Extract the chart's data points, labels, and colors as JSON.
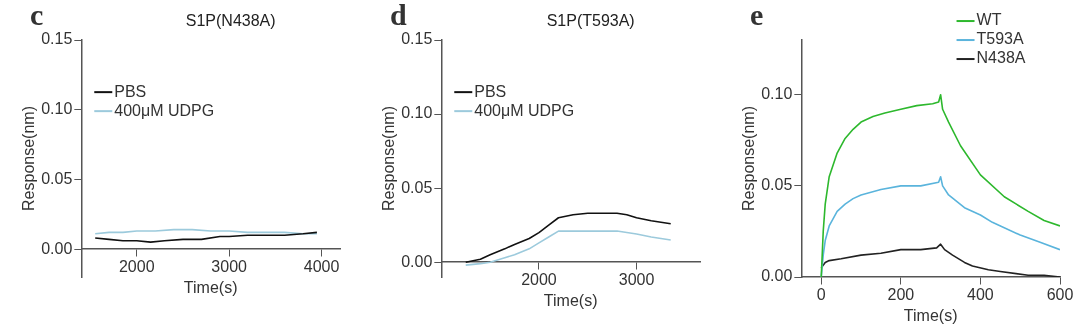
{
  "chart_data": [
    {
      "type": "line",
      "title": "S1P(N438A)",
      "xlabel": "Time(s)",
      "ylabel": "Response(nm)",
      "annotations": [
        "c"
      ],
      "xlim": [
        1400,
        4200
      ],
      "xticks": [
        2000,
        3000,
        4000
      ],
      "ylim": [
        -0.02,
        0.15
      ],
      "yticks": [
        {
          "value": 0,
          "label": "0.00"
        },
        {
          "value": 0.05,
          "label": "0.05"
        },
        {
          "value": 0.1,
          "label": "0.10"
        },
        {
          "value": 0.15,
          "label": "0.15"
        }
      ],
      "legend": "left",
      "grid": false,
      "marker": "none",
      "line_style": "solid",
      "series": [
        {
          "name": "PBS",
          "color": "#111111",
          "x": [
            1550,
            1700,
            1850,
            2000,
            2150,
            2300,
            2500,
            2700,
            2900,
            3000,
            3200,
            3400,
            3600,
            3800,
            3950
          ],
          "values": [
            0.008,
            0.007,
            0.006,
            0.006,
            0.005,
            0.006,
            0.007,
            0.007,
            0.009,
            0.009,
            0.01,
            0.01,
            0.01,
            0.011,
            0.012
          ]
        },
        {
          "name": "400μM UDPG",
          "color": "#9ccadc",
          "x": [
            1550,
            1700,
            1850,
            2000,
            2200,
            2400,
            2600,
            2800,
            3000,
            3200,
            3400,
            3600,
            3800,
            3950
          ],
          "values": [
            0.011,
            0.012,
            0.012,
            0.013,
            0.013,
            0.014,
            0.014,
            0.013,
            0.013,
            0.012,
            0.012,
            0.012,
            0.011,
            0.011
          ]
        }
      ]
    },
    {
      "type": "line",
      "title": "S1P(T593A)",
      "xlabel": "Time(s)",
      "ylabel": "Response(nm)",
      "annotations": [
        "d"
      ],
      "xlim": [
        1000,
        3650
      ],
      "xticks": [
        2000,
        3000
      ],
      "ylim": [
        -0.01,
        0.15
      ],
      "yticks": [
        {
          "value": 0,
          "label": "0.00"
        },
        {
          "value": 0.05,
          "label": "0.05"
        },
        {
          "value": 0.1,
          "label": "0.10"
        },
        {
          "value": 0.15,
          "label": "0.15"
        }
      ],
      "legend": "left",
      "grid": false,
      "marker": "none",
      "line_style": "solid",
      "series": [
        {
          "name": "PBS",
          "color": "#111111",
          "x": [
            1250,
            1400,
            1500,
            1650,
            1750,
            1900,
            2000,
            2100,
            2200,
            2350,
            2500,
            2650,
            2800,
            2900,
            3000,
            3150,
            3350
          ],
          "values": [
            0,
            0.002,
            0.005,
            0.009,
            0.012,
            0.016,
            0.02,
            0.025,
            0.03,
            0.032,
            0.033,
            0.033,
            0.033,
            0.032,
            0.03,
            0.028,
            0.026
          ]
        },
        {
          "name": "400μM UDPG",
          "color": "#9ccadc",
          "x": [
            1250,
            1400,
            1500,
            1650,
            1750,
            1900,
            2000,
            2100,
            2200,
            2350,
            2500,
            2650,
            2800,
            2900,
            3000,
            3150,
            3350
          ],
          "values": [
            -0.002,
            -0.001,
            0,
            0.003,
            0.005,
            0.009,
            0.013,
            0.017,
            0.021,
            0.021,
            0.021,
            0.021,
            0.021,
            0.02,
            0.019,
            0.017,
            0.015
          ]
        }
      ]
    },
    {
      "type": "line",
      "xlabel": "Time(s)",
      "ylabel": "Response(nm)",
      "annotations": [
        "e"
      ],
      "xlim": [
        -50,
        600
      ],
      "xticks": [
        0,
        200,
        400,
        600
      ],
      "ylim": [
        0,
        0.13
      ],
      "yticks": [
        {
          "value": 0,
          "label": "0.00"
        },
        {
          "value": 0.05,
          "label": "0.05"
        },
        {
          "value": 0.1,
          "label": "0.10"
        }
      ],
      "legend": "top right",
      "grid": false,
      "marker": "none",
      "line_style": "solid",
      "series": [
        {
          "name": "WT",
          "color": "#2db82d",
          "x": [
            0,
            5,
            10,
            20,
            40,
            60,
            80,
            100,
            130,
            160,
            200,
            240,
            280,
            295,
            300,
            305,
            320,
            350,
            400,
            460,
            520,
            560,
            600
          ],
          "values": [
            0,
            0.025,
            0.04,
            0.055,
            0.068,
            0.076,
            0.081,
            0.085,
            0.088,
            0.09,
            0.092,
            0.094,
            0.095,
            0.096,
            0.1,
            0.092,
            0.085,
            0.072,
            0.056,
            0.044,
            0.036,
            0.031,
            0.028
          ]
        },
        {
          "name": "T593A",
          "color": "#5ab4dc",
          "x": [
            0,
            5,
            10,
            20,
            40,
            60,
            80,
            100,
            150,
            200,
            250,
            295,
            300,
            305,
            320,
            360,
            400,
            430,
            500,
            550,
            600
          ],
          "values": [
            0,
            0.012,
            0.02,
            0.028,
            0.036,
            0.04,
            0.043,
            0.045,
            0.048,
            0.05,
            0.05,
            0.052,
            0.055,
            0.05,
            0.045,
            0.038,
            0.034,
            0.03,
            0.023,
            0.019,
            0.015
          ]
        },
        {
          "name": "N438A",
          "color": "#222222",
          "x": [
            0,
            10,
            20,
            50,
            100,
            150,
            200,
            250,
            290,
            300,
            310,
            330,
            360,
            380,
            420,
            450,
            520,
            560,
            600
          ],
          "values": [
            0.005,
            0.008,
            0.009,
            0.01,
            0.012,
            0.013,
            0.015,
            0.015,
            0.016,
            0.018,
            0.015,
            0.012,
            0.008,
            0.006,
            0.004,
            0.003,
            0.001,
            0.001,
            0
          ]
        }
      ]
    }
  ]
}
